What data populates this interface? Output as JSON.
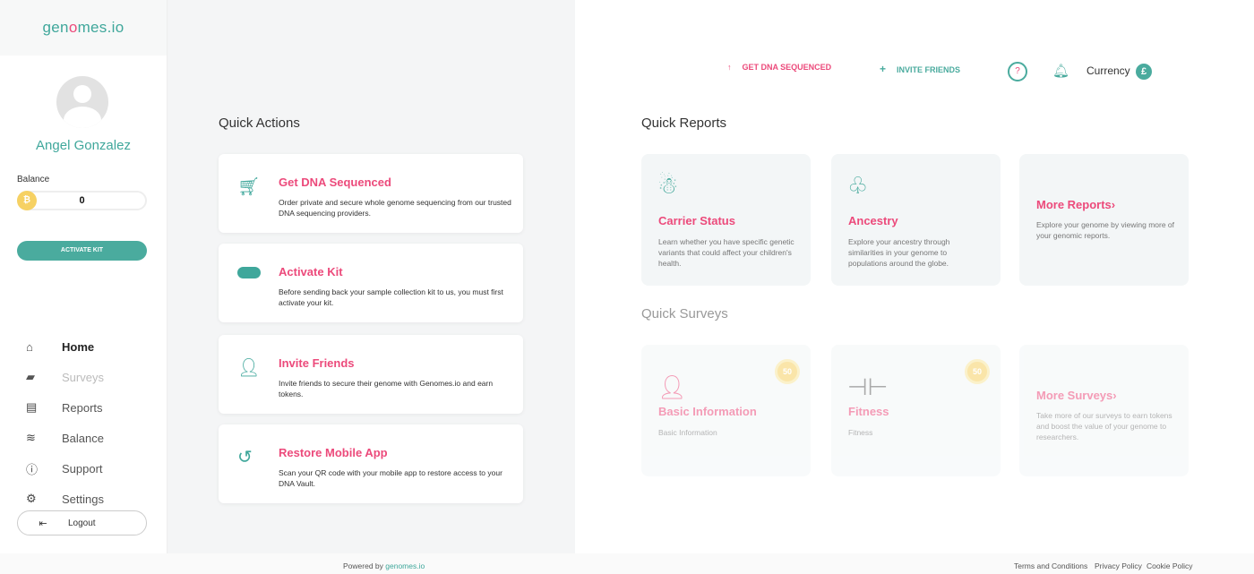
{
  "brand": {
    "logo_pre": "gen",
    "logo_mark": "o",
    "logo_post": "mes.io"
  },
  "user": {
    "name": "Angel Gonzalez",
    "balance_label": "Balance",
    "balance": "0",
    "activate_label": "ACTIVATE KIT"
  },
  "nav": [
    {
      "label": "Home",
      "icon": "home-icon"
    },
    {
      "label": "Surveys",
      "icon": "chat-icon"
    },
    {
      "label": "Reports",
      "icon": "document-icon"
    },
    {
      "label": "Balance",
      "icon": "database-icon"
    },
    {
      "label": "Support",
      "icon": "info-icon"
    },
    {
      "label": "Settings",
      "icon": "gear-icon"
    }
  ],
  "logout": "Logout",
  "topbar": {
    "get_dna": "GET DNA SEQUENCED",
    "invite": "INVITE FRIENDS",
    "help": "?",
    "currency": "Currency",
    "currency_symbol": "£"
  },
  "quick_actions": {
    "title": "Quick Actions",
    "items": [
      {
        "title": "Get DNA Sequenced",
        "desc": "Order private and secure whole genome sequencing from our trusted DNA sequencing providers.",
        "icon": "cart-icon"
      },
      {
        "title": "Activate Kit",
        "desc": "Before sending back your sample collection kit to us, you must first activate your kit.",
        "icon": "toggle-icon"
      },
      {
        "title": "Invite Friends",
        "desc": "Invite friends to secure their genome with Genomes.io and earn tokens.",
        "icon": "invite-icon"
      },
      {
        "title": "Restore Mobile App",
        "desc": "Scan your QR code with your mobile app to restore access to your DNA Vault.",
        "icon": "restore-icon"
      }
    ]
  },
  "quick_reports": {
    "title": "Quick Reports",
    "items": [
      {
        "title": "Carrier Status",
        "desc": "Learn whether you have specific genetic variants that could affect your children's health.",
        "icon": "carrier-icon"
      },
      {
        "title": "Ancestry",
        "desc": "Explore your ancestry through similarities in your genome to populations around the globe.",
        "icon": "family-tree-icon"
      },
      {
        "title": "More Reports›",
        "desc": "Explore your genome by viewing more of your genomic reports."
      }
    ]
  },
  "quick_surveys": {
    "title": "Quick Surveys",
    "items": [
      {
        "title": "Basic Information",
        "desc": "Basic Information",
        "reward": "50",
        "icon": "person-info-icon"
      },
      {
        "title": "Fitness",
        "desc": "Fitness",
        "reward": "50",
        "icon": "dumbbell-icon"
      },
      {
        "title": "More Surveys›",
        "desc": "Take more of our surveys to earn tokens and boost the value of your genome to researchers."
      }
    ]
  },
  "footer": {
    "powered": "Powered by",
    "powered_link": "genomes.io",
    "terms": "Terms and Conditions",
    "privacy": "Privacy Policy",
    "cookie": "Cookie Policy"
  },
  "colors": {
    "accent": "#4aab9e",
    "pink": "#ec4a7b",
    "coin": "#f6d163"
  }
}
